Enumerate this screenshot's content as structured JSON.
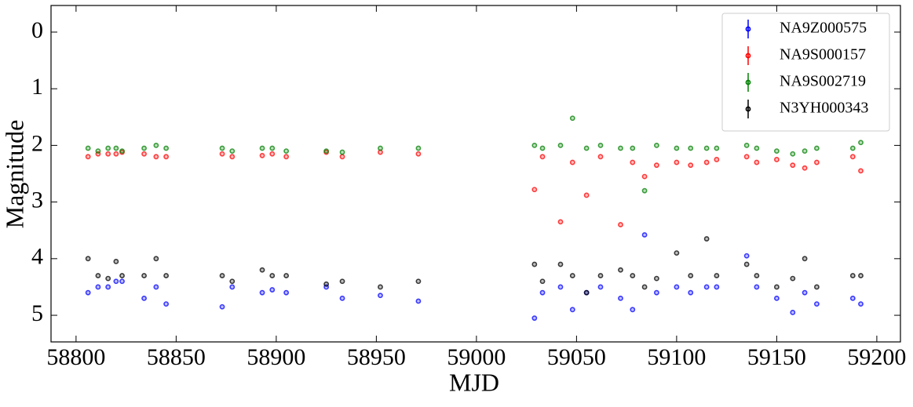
{
  "chart_data": {
    "type": "scatter",
    "xlabel": "MJD",
    "ylabel": "Magnitude",
    "xlim": [
      58787.5,
      59211.8
    ],
    "ylim": [
      -0.47,
      5.47
    ],
    "invert_y": true,
    "xticks": [
      58800,
      58850,
      58900,
      58950,
      59000,
      59050,
      59100,
      59150,
      59200
    ],
    "yticks": [
      0,
      1,
      2,
      3,
      4,
      5
    ],
    "legend": "upper right",
    "x": [
      58806,
      58811,
      58816,
      58820,
      58823,
      58834,
      58840,
      58845,
      58873,
      58878,
      58893,
      58898,
      58905,
      58925,
      58933,
      58952,
      58971,
      59029,
      59033,
      59042,
      59048,
      59055,
      59062,
      59072,
      59078,
      59084,
      59090,
      59100,
      59107,
      59115,
      59120,
      59135,
      59140,
      59150,
      59158,
      59164,
      59170,
      59188,
      59192
    ],
    "series": [
      {
        "name": "NA9Z000575",
        "color": "#0000ff",
        "values": [
          4.6,
          4.5,
          4.5,
          4.4,
          4.4,
          4.7,
          4.5,
          4.8,
          4.85,
          4.5,
          4.6,
          4.55,
          4.6,
          4.5,
          4.7,
          4.65,
          4.75,
          5.05,
          4.6,
          4.5,
          4.9,
          4.6,
          4.5,
          4.7,
          4.9,
          3.58,
          4.6,
          4.5,
          4.6,
          4.5,
          4.5,
          3.95,
          4.5,
          4.7,
          4.95,
          4.6,
          4.8,
          4.7,
          4.8
        ]
      },
      {
        "name": "NA9S000157",
        "color": "#ff0000",
        "values": [
          2.2,
          2.15,
          2.15,
          2.15,
          2.12,
          2.15,
          2.2,
          2.2,
          2.15,
          2.2,
          2.18,
          2.15,
          2.2,
          2.12,
          2.2,
          2.12,
          2.15,
          2.78,
          2.2,
          3.35,
          2.3,
          2.88,
          2.2,
          3.4,
          2.3,
          2.55,
          2.35,
          2.3,
          2.35,
          2.3,
          2.25,
          2.2,
          2.3,
          2.25,
          2.35,
          2.4,
          2.3,
          2.2,
          2.45
        ]
      },
      {
        "name": "NA9S002719",
        "color": "#008000",
        "values": [
          2.05,
          2.1,
          2.05,
          2.05,
          2.1,
          2.05,
          2.0,
          2.05,
          2.05,
          2.1,
          2.05,
          2.05,
          2.1,
          2.1,
          2.12,
          2.05,
          2.05,
          2.0,
          2.05,
          2.0,
          1.52,
          2.05,
          2.0,
          2.05,
          2.05,
          2.8,
          2.0,
          2.05,
          2.05,
          2.05,
          2.05,
          2.0,
          2.05,
          2.1,
          2.15,
          2.1,
          2.05,
          2.05,
          1.95
        ]
      },
      {
        "name": "N3YH000343",
        "color": "#000000",
        "values": [
          4.0,
          4.3,
          4.35,
          4.05,
          4.3,
          4.3,
          4.0,
          4.3,
          4.3,
          4.4,
          4.2,
          4.3,
          4.3,
          4.45,
          4.4,
          4.5,
          4.4,
          4.1,
          4.4,
          4.1,
          4.3,
          4.6,
          4.3,
          4.2,
          4.3,
          4.5,
          4.35,
          3.9,
          4.3,
          3.65,
          4.3,
          4.1,
          4.3,
          4.5,
          4.35,
          4.0,
          4.5,
          4.3,
          4.3
        ]
      }
    ]
  }
}
